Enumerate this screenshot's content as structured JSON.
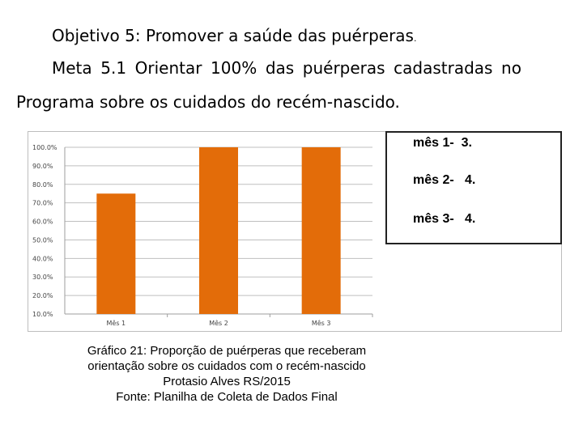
{
  "heading": {
    "objective": "Objetivo 5: Promover a saúde das puérperas",
    "objective_end": ".",
    "meta_words": [
      "Meta",
      "5.1",
      "Orientar",
      "100%",
      "das",
      "puérperas",
      "cadastradas",
      "no"
    ],
    "meta_line2": "Programa sobre os cuidados do recém-nascido."
  },
  "chart_data": {
    "type": "bar",
    "categories": [
      "Mês 1",
      "Mês 2",
      "Mês 3"
    ],
    "values": [
      75.0,
      100.0,
      100.0
    ],
    "ylim": [
      10,
      100
    ],
    "yticks": [
      "100.0%",
      "90.0%",
      "80.0%",
      "70.0%",
      "60.0%",
      "50.0%",
      "40.0%",
      "30.0%",
      "20.0%",
      "10.0%"
    ],
    "ytick_values": [
      100,
      90,
      80,
      70,
      60,
      50,
      40,
      30,
      20,
      10
    ],
    "bar_color": "#e36c09",
    "grid": true
  },
  "legend_box": {
    "lines": [
      "mês 1-  3.",
      "mês 2-   4.",
      "mês 3-   4."
    ]
  },
  "caption": {
    "lines": [
      "Gráfico 21: Proporção de puérperas que receberam",
      "orientação sobre os cuidados com o recém-nascido",
      "Protasio Alves RS/2015",
      "Fonte: Planilha de Coleta de Dados Final"
    ]
  }
}
